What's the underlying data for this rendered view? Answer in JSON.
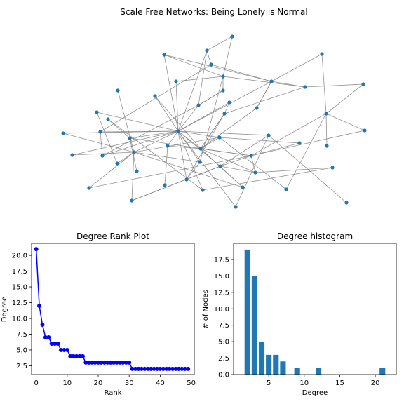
{
  "chart_data": [
    {
      "type": "network",
      "title": "Scale Free Networks: Being Lonely is Normal",
      "node_color": "#1f77b4",
      "edge_color": "#7f7f7f"
    },
    {
      "type": "line",
      "title": "Degree Rank Plot",
      "xlabel": "Rank",
      "ylabel": "Degree",
      "xlim": [
        -1.5,
        51
      ],
      "ylim": [
        1.1,
        21.9
      ],
      "x_ticks": [
        0,
        10,
        20,
        30,
        40,
        50
      ],
      "y_ticks": [
        2.5,
        5.0,
        7.5,
        10.0,
        12.5,
        15.0,
        17.5,
        20.0
      ],
      "color": "#0000ff",
      "marker": "circle",
      "values": [
        21,
        12,
        9,
        7,
        7,
        6,
        6,
        6,
        5,
        5,
        5,
        4,
        4,
        4,
        4,
        4,
        3,
        3,
        3,
        3,
        3,
        3,
        3,
        3,
        3,
        3,
        3,
        3,
        3,
        3,
        3,
        2,
        2,
        2,
        2,
        2,
        2,
        2,
        2,
        2,
        2,
        2,
        2,
        2,
        2,
        2,
        2,
        2,
        2,
        2
      ]
    },
    {
      "type": "bar",
      "title": "Degree histogram",
      "xlabel": "Degree",
      "ylabel": "# of Nodes",
      "xlim": [
        0.05,
        22.95
      ],
      "ylim": [
        0,
        19.95
      ],
      "x_ticks": [
        5,
        10,
        15,
        20
      ],
      "y_ticks": [
        0.0,
        2.5,
        5.0,
        7.5,
        10.0,
        12.5,
        15.0,
        17.5
      ],
      "color": "#1f77b4",
      "categories": [
        2,
        3,
        4,
        5,
        6,
        7,
        9,
        12,
        21
      ],
      "values": [
        19,
        15,
        5,
        3,
        3,
        2,
        1,
        1,
        1
      ]
    }
  ]
}
